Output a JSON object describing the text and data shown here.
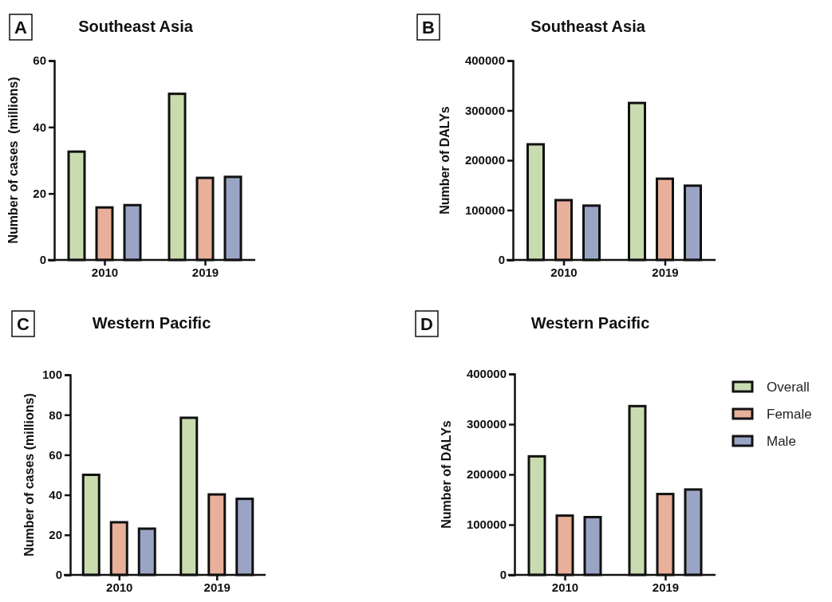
{
  "chart_data": [
    {
      "type": "bar",
      "title": "Southeast Asia",
      "ylabel": "Number of cases  (millions)",
      "annotations": [
        "A"
      ],
      "categories": [
        "2010",
        "2019"
      ],
      "ylim": [
        0,
        60
      ],
      "yticks": [
        0,
        20,
        40,
        60
      ],
      "legend": false,
      "series": [
        {
          "color": "#c9dcaf",
          "values": [
            32.6,
            50
          ]
        },
        {
          "color": "#e8b09a",
          "values": [
            15.8,
            24.7
          ]
        },
        {
          "color": "#9aa5c6",
          "values": [
            16.5,
            25
          ]
        }
      ]
    },
    {
      "type": "bar",
      "title": "Southeast Asia",
      "ylabel": "Number of DALYs",
      "annotations": [
        "B"
      ],
      "categories": [
        "2010",
        "2019"
      ],
      "ylim": [
        0,
        400000
      ],
      "yticks": [
        0,
        100000,
        200000,
        300000,
        400000
      ],
      "legend": false,
      "series": [
        {
          "color": "#c9dcaf",
          "values": [
            232000,
            315000
          ]
        },
        {
          "color": "#e8b09a",
          "values": [
            120000,
            163000
          ]
        },
        {
          "color": "#9aa5c6",
          "values": [
            109000,
            149000
          ]
        }
      ]
    },
    {
      "type": "bar",
      "title": "Western Pacific",
      "ylabel": "Number of cases (millions)",
      "annotations": [
        "C"
      ],
      "categories": [
        "2010",
        "2019"
      ],
      "ylim": [
        0,
        100
      ],
      "yticks": [
        0,
        20,
        40,
        60,
        80,
        100
      ],
      "legend": false,
      "series": [
        {
          "color": "#c9dcaf",
          "values": [
            50,
            78.5
          ]
        },
        {
          "color": "#e8b09a",
          "values": [
            26.3,
            40.2
          ]
        },
        {
          "color": "#9aa5c6",
          "values": [
            23.1,
            38
          ]
        }
      ]
    },
    {
      "type": "bar",
      "title": "Western Pacific",
      "ylabel": "Number of DALYs",
      "annotations": [
        "D"
      ],
      "categories": [
        "2010",
        "2019"
      ],
      "ylim": [
        0,
        400000
      ],
      "yticks": [
        0,
        100000,
        200000,
        300000,
        400000
      ],
      "legend": "right",
      "series": [
        {
          "name": "Overall",
          "color": "#c9dcaf",
          "values": [
            236000,
            336000
          ]
        },
        {
          "name": "Female",
          "color": "#e8b09a",
          "values": [
            118000,
            161000
          ]
        },
        {
          "name": "Male",
          "color": "#9aa5c6",
          "values": [
            115000,
            170000
          ]
        }
      ]
    }
  ]
}
